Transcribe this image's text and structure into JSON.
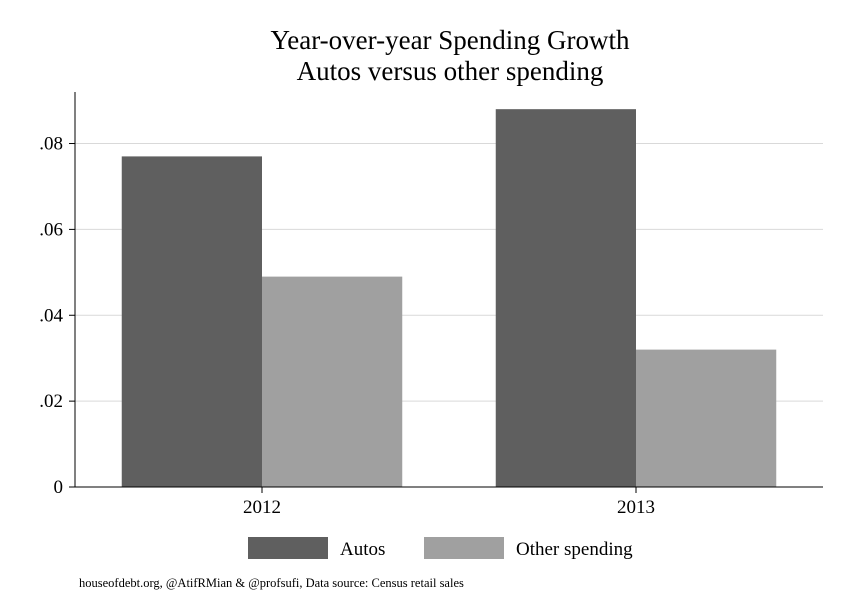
{
  "chart_data": {
    "type": "bar",
    "title": "Year-over-year Spending Growth",
    "subtitle": "Autos versus other spending",
    "categories": [
      "2012",
      "2013"
    ],
    "series": [
      {
        "name": "Autos",
        "values": [
          0.077,
          0.088
        ],
        "color": "#5f5f5f"
      },
      {
        "name": "Other spending",
        "values": [
          0.049,
          0.032
        ],
        "color": "#a0a0a0"
      }
    ],
    "ylim": [
      0,
      0.092
    ],
    "yticks": [
      0,
      0.02,
      0.04,
      0.06,
      0.08
    ],
    "ytick_labels": [
      "0",
      ".02",
      ".04",
      ".06",
      ".08"
    ],
    "xlabel": "",
    "ylabel": "",
    "grid": true,
    "legend_position": "bottom"
  },
  "note": "houseofdebt.org, @AtifRMian & @profsufi, Data source: Census retail sales"
}
